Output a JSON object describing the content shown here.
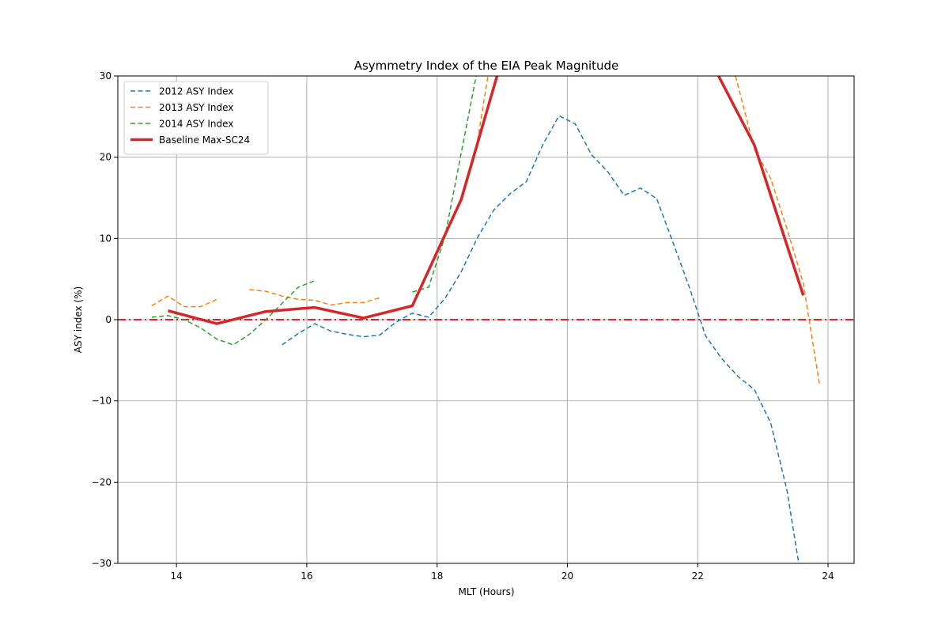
{
  "chart_data": {
    "type": "line",
    "title": "Asymmetry Index of the EIA Peak Magnitude",
    "xlabel": "MLT (Hours)",
    "ylabel": "ASY index (%)",
    "xlim": [
      13.1,
      24.4
    ],
    "ylim": [
      -30,
      30
    ],
    "xticks": [
      14,
      16,
      18,
      20,
      22,
      24
    ],
    "yticks": [
      -30,
      -20,
      -10,
      0,
      10,
      20,
      30
    ],
    "xtick_labels": [
      "14",
      "16",
      "18",
      "20",
      "22",
      "24"
    ],
    "ytick_labels": [
      "−30",
      "−20",
      "−10",
      "0",
      "10",
      "20",
      "30"
    ],
    "grid": true,
    "legend_position": "upper-left",
    "reference_line": {
      "y": 0,
      "color": "#d62728",
      "style": "dash-dot"
    },
    "series": [
      {
        "name": "2012 ASY Index",
        "color": "#1f77b4",
        "style": "dashed",
        "width": 1.5,
        "segments": [
          [
            [
              15.62,
              -3.1
            ],
            [
              15.87,
              -1.7
            ],
            [
              16.12,
              -0.5
            ],
            [
              16.37,
              -1.4
            ],
            [
              16.62,
              -1.8
            ],
            [
              16.87,
              -2.1
            ],
            [
              17.12,
              -1.9
            ],
            [
              17.37,
              -0.3
            ],
            [
              17.62,
              0.8
            ],
            [
              17.87,
              0.3
            ],
            [
              18.12,
              2.6
            ],
            [
              18.37,
              5.9
            ],
            [
              18.62,
              10.1
            ],
            [
              18.87,
              13.5
            ],
            [
              19.12,
              15.5
            ],
            [
              19.37,
              17.0
            ],
            [
              19.62,
              21.5
            ],
            [
              19.87,
              25.1
            ],
            [
              20.12,
              24.1
            ],
            [
              20.37,
              20.3
            ],
            [
              20.62,
              18.2
            ],
            [
              20.87,
              15.3
            ],
            [
              21.12,
              16.2
            ],
            [
              21.37,
              14.9
            ],
            [
              21.62,
              9.5
            ],
            [
              21.87,
              4.0
            ],
            [
              22.12,
              -2.0
            ],
            [
              22.37,
              -4.8
            ],
            [
              22.62,
              -7.0
            ],
            [
              22.87,
              -8.6
            ],
            [
              23.12,
              -12.7
            ],
            [
              23.37,
              -21.0
            ],
            [
              23.55,
              -30
            ]
          ]
        ]
      },
      {
        "name": "2013 ASY Index",
        "color": "#ff7f0e",
        "style": "dashed",
        "width": 1.5,
        "segments": [
          [
            [
              13.62,
              1.7
            ],
            [
              13.87,
              2.9
            ],
            [
              14.12,
              1.6
            ],
            [
              14.37,
              1.6
            ],
            [
              14.62,
              2.5
            ]
          ],
          [
            [
              15.12,
              3.7
            ],
            [
              15.37,
              3.5
            ],
            [
              15.62,
              2.9
            ],
            [
              15.87,
              2.5
            ],
            [
              16.12,
              2.4
            ],
            [
              16.37,
              1.8
            ],
            [
              16.62,
              2.1
            ],
            [
              16.87,
              2.1
            ],
            [
              17.12,
              2.7
            ]
          ],
          [
            [
              18.62,
              22.0
            ],
            [
              18.78,
              30
            ]
          ],
          [
            [
              22.58,
              30
            ],
            [
              22.87,
              21.0
            ],
            [
              23.12,
              17.4
            ],
            [
              23.37,
              11.2
            ],
            [
              23.62,
              4.5
            ],
            [
              23.87,
              -8.0
            ]
          ]
        ]
      },
      {
        "name": "2014 ASY Index",
        "color": "#2ca02c",
        "style": "dashed",
        "width": 1.5,
        "segments": [
          [
            [
              13.62,
              0.3
            ],
            [
              13.87,
              0.5
            ],
            [
              14.12,
              0.0
            ],
            [
              14.37,
              -1.0
            ],
            [
              14.62,
              -2.4
            ],
            [
              14.87,
              -3.1
            ],
            [
              15.12,
              -1.8
            ],
            [
              15.37,
              0.0
            ],
            [
              15.62,
              2.0
            ],
            [
              15.87,
              4.0
            ],
            [
              16.12,
              4.8
            ]
          ],
          [
            [
              17.62,
              3.4
            ],
            [
              17.87,
              4.0
            ],
            [
              18.12,
              10.2
            ],
            [
              18.37,
              20.5
            ],
            [
              18.6,
              30
            ]
          ]
        ]
      },
      {
        "name": "Baseline Max-SC24",
        "color": "#d62728",
        "style": "solid",
        "width": 3.5,
        "segments": [
          [
            [
              13.87,
              1.1
            ],
            [
              14.62,
              -0.5
            ],
            [
              15.37,
              1.0
            ],
            [
              16.12,
              1.5
            ],
            [
              16.87,
              0.2
            ],
            [
              17.62,
              1.7
            ],
            [
              18.37,
              14.8
            ],
            [
              18.92,
              30
            ]
          ],
          [
            [
              22.32,
              30
            ],
            [
              22.87,
              21.5
            ],
            [
              23.62,
              3.0
            ]
          ]
        ]
      }
    ]
  }
}
